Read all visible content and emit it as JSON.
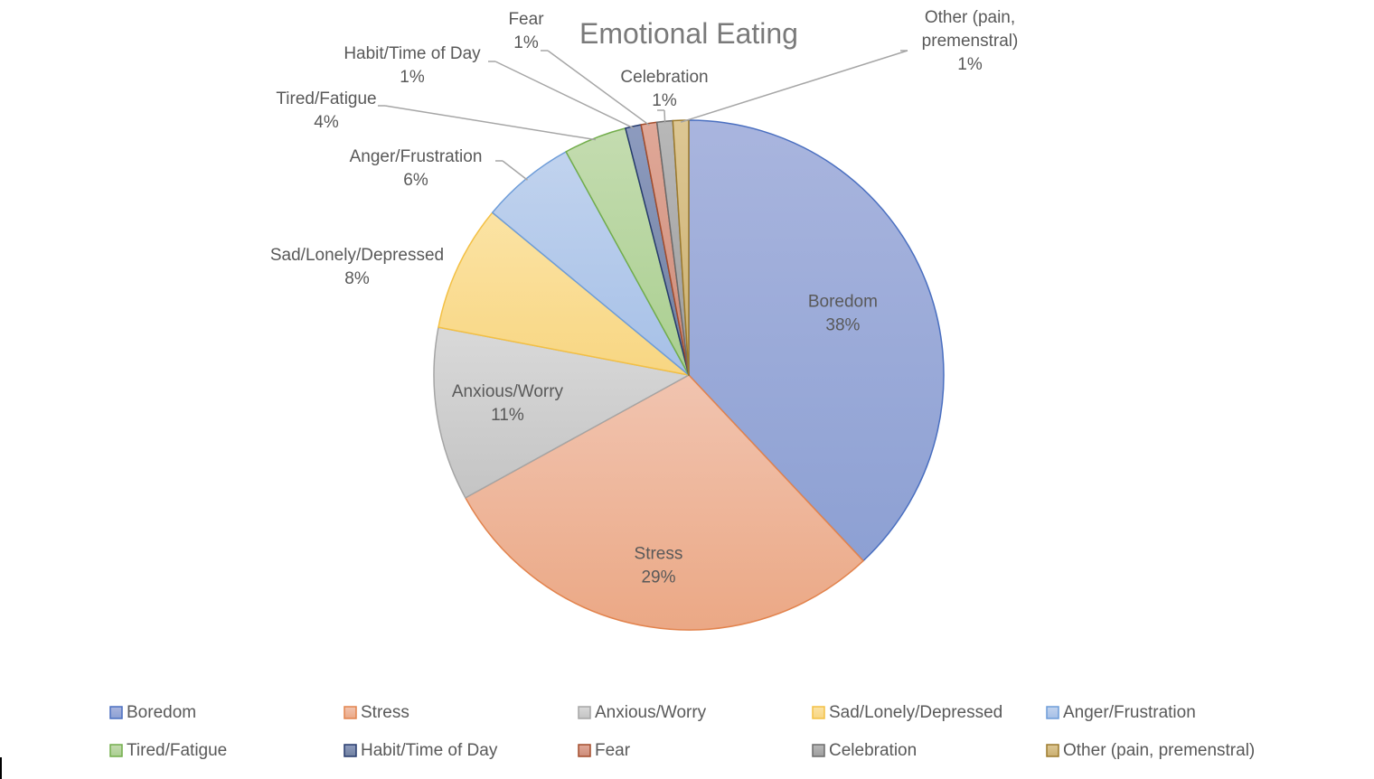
{
  "chart_data": {
    "type": "pie",
    "title": "Emotional Eating",
    "legend_position": "bottom",
    "slices": [
      {
        "name": "Boredom",
        "label": [
          "Boredom"
        ],
        "value": 38,
        "value_label": "38%",
        "color_light": "#a9b5de",
        "color_dark": "#8da0d3",
        "stroke": "#4a6fc0"
      },
      {
        "name": "Stress",
        "label": [
          "Stress"
        ],
        "value": 29,
        "value_label": "29%",
        "color_light": "#f1c4b0",
        "color_dark": "#eba885",
        "stroke": "#e2834d"
      },
      {
        "name": "Anxious/Worry",
        "label": [
          "Anxious/Worry"
        ],
        "value": 11,
        "value_label": "11%",
        "color_light": "#d9d9d9",
        "color_dark": "#c4c4c4",
        "stroke": "#a5a5a5"
      },
      {
        "name": "Sad/Lonely/Depressed",
        "label": [
          "Sad/Lonely/Depressed"
        ],
        "value": 8,
        "value_label": "8%",
        "color_light": "#fbe3a4",
        "color_dark": "#f8d682",
        "stroke": "#f3c044"
      },
      {
        "name": "Anger/Frustration",
        "label": [
          "Anger/Frustration"
        ],
        "value": 6,
        "value_label": "6%",
        "color_light": "#c1d3ee",
        "color_dark": "#a6c0e7",
        "stroke": "#6d9cd8"
      },
      {
        "name": "Tired/Fatigue",
        "label": [
          "Tired/Fatigue"
        ],
        "value": 4,
        "value_label": "4%",
        "color_light": "#c4dcb0",
        "color_dark": "#aacf90",
        "stroke": "#72ad4b"
      },
      {
        "name": "Habit/Time of Day",
        "label": [
          "Habit/Time of Day"
        ],
        "value": 1,
        "value_label": "1%",
        "color_light": "#8d9bbf",
        "color_dark": "#71819f",
        "stroke": "#263a6d"
      },
      {
        "name": "Fear",
        "label": [
          "Fear"
        ],
        "value": 1,
        "value_label": "1%",
        "color_light": "#e0a898",
        "color_dark": "#cd8c79",
        "stroke": "#a34d2c"
      },
      {
        "name": "Celebration",
        "label": [
          "Celebration"
        ],
        "value": 1,
        "value_label": "1%",
        "color_light": "#b8b8b8",
        "color_dark": "#9e9e9e",
        "stroke": "#6b6b6b"
      },
      {
        "name": "Other (pain, premenstral)",
        "label": [
          "Other (pain,",
          "premenstral)"
        ],
        "value": 1,
        "value_label": "1%",
        "color_light": "#ddc794",
        "color_dark": "#cbb071",
        "stroke": "#9c7a2c"
      }
    ]
  }
}
